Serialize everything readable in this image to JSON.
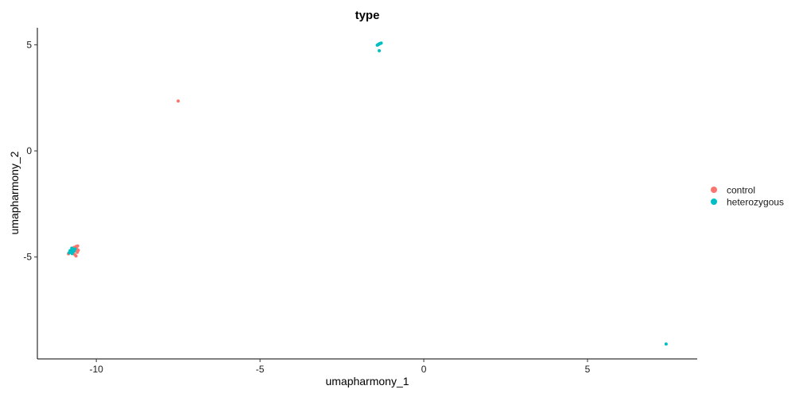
{
  "chart_data": {
    "type": "scatter",
    "title": "type",
    "xlabel": "umapharmony_1",
    "ylabel": "umapharmony_2",
    "xlim": [
      -11.8,
      8.35
    ],
    "ylim": [
      -9.8,
      5.8
    ],
    "xticks": [
      -10,
      -5,
      0,
      5
    ],
    "xtick_labels": [
      "-10",
      "-5",
      "0",
      "5"
    ],
    "yticks": [
      -5,
      0,
      5
    ],
    "ytick_labels": [
      "-5",
      "0",
      "5"
    ],
    "grid": false,
    "legend_position": "right",
    "series": [
      {
        "name": "control",
        "color": "#F8766D",
        "points": [
          [
            -7.5,
            2.35
          ],
          [
            -10.62,
            -4.5
          ],
          [
            -10.57,
            -4.48
          ],
          [
            -10.68,
            -4.55
          ],
          [
            -10.6,
            -4.62
          ],
          [
            -10.75,
            -4.65
          ],
          [
            -10.65,
            -4.7
          ],
          [
            -10.8,
            -4.75
          ],
          [
            -10.58,
            -4.78
          ],
          [
            -10.72,
            -4.82
          ],
          [
            -10.85,
            -4.85
          ],
          [
            -10.66,
            -4.88
          ],
          [
            -10.62,
            -4.95
          ],
          [
            -10.7,
            -4.6
          ],
          [
            -10.55,
            -4.68
          ]
        ]
      },
      {
        "name": "heterozygous",
        "color": "#00BFC4",
        "points": [
          [
            -1.4,
            5.0
          ],
          [
            -1.35,
            5.05
          ],
          [
            -1.3,
            5.08
          ],
          [
            -1.42,
            4.98
          ],
          [
            -1.38,
            5.02
          ],
          [
            -1.33,
            5.06
          ],
          [
            -1.36,
            4.72
          ],
          [
            -10.75,
            -4.58
          ],
          [
            -10.7,
            -4.64
          ],
          [
            -10.8,
            -4.7
          ],
          [
            -10.68,
            -4.72
          ],
          [
            -10.78,
            -4.76
          ],
          [
            -10.72,
            -4.68
          ],
          [
            -10.83,
            -4.8
          ],
          [
            -10.65,
            -4.62
          ],
          [
            -10.74,
            -4.84
          ],
          [
            -10.7,
            -4.74
          ],
          [
            7.4,
            -9.1
          ]
        ]
      }
    ]
  }
}
